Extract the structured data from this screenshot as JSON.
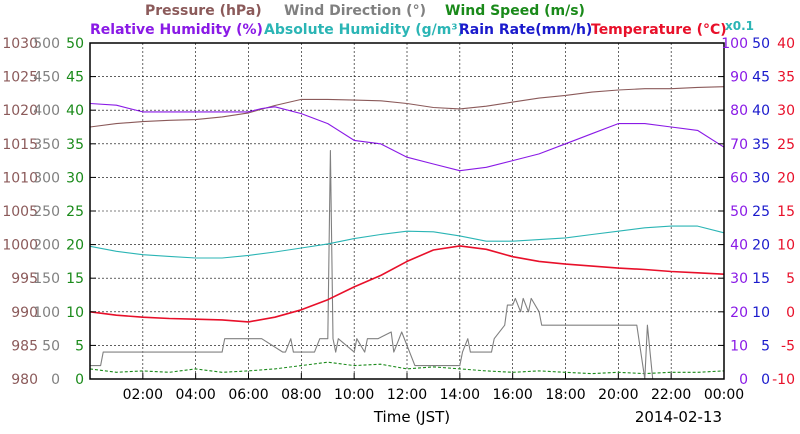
{
  "colors": {
    "pressure": "#8b5a5a",
    "wind_direction": "#808080",
    "wind_speed": "#1a8a1a",
    "humidity_rel": "#8a1ae6",
    "humidity_abs": "#2bb5b5",
    "rain": "#1a1acc",
    "temperature": "#e8102a"
  },
  "chart_data": {
    "type": "line",
    "legend": {
      "row1": [
        {
          "key": "pressure",
          "label": "Pressure (hPa)"
        },
        {
          "key": "wind_direction",
          "label": "Wind Direction (°)"
        },
        {
          "key": "wind_speed",
          "label": "Wind Speed (m/s)"
        }
      ],
      "row2": [
        {
          "key": "humidity_rel",
          "label": "Relative Humidity (%)"
        },
        {
          "key": "humidity_abs",
          "label": "Absolute Humidity (g/m³)"
        },
        {
          "key": "rain",
          "label": "Rain Rate(mm/h)"
        },
        {
          "key": "temperature",
          "label": "Temperature (°C)"
        }
      ]
    },
    "multiplier_label": "x0.1",
    "xlabel": "Time (JST)",
    "date": "2014-02-13",
    "xlim": [
      0,
      24
    ],
    "x_ticks": [
      {
        "v": 2,
        "label": "02:00"
      },
      {
        "v": 4,
        "label": "04:00"
      },
      {
        "v": 6,
        "label": "06:00"
      },
      {
        "v": 8,
        "label": "08:00"
      },
      {
        "v": 10,
        "label": "10:00"
      },
      {
        "v": 12,
        "label": "12:00"
      },
      {
        "v": 14,
        "label": "14:00"
      },
      {
        "v": 16,
        "label": "16:00"
      },
      {
        "v": 18,
        "label": "18:00"
      },
      {
        "v": 20,
        "label": "20:00"
      },
      {
        "v": 22,
        "label": "22:00"
      },
      {
        "v": 24,
        "label": "00:00"
      }
    ],
    "axes": {
      "pressure": {
        "range": [
          980,
          1030
        ],
        "ticks": [
          "980",
          "985",
          "990",
          "995",
          "1000",
          "1005",
          "1010",
          "1015",
          "1020",
          "1025",
          "1030"
        ]
      },
      "wind_direction": {
        "range": [
          0,
          500
        ],
        "ticks": [
          "0",
          "50",
          "100",
          "150",
          "200",
          "250",
          "300",
          "350",
          "400",
          "450",
          "500"
        ]
      },
      "wind_speed": {
        "range": [
          0,
          50
        ],
        "ticks": [
          "0",
          "5",
          "10",
          "15",
          "20",
          "25",
          "30",
          "35",
          "40",
          "45",
          "50"
        ]
      },
      "humidity": {
        "range": [
          0,
          100
        ],
        "ticks": [
          "0",
          "10",
          "20",
          "30",
          "40",
          "50",
          "60",
          "70",
          "80",
          "90",
          "100"
        ]
      },
      "rain": {
        "range": [
          0,
          50
        ],
        "ticks": [
          "0",
          "5",
          "10",
          "15",
          "20",
          "25",
          "30",
          "35",
          "40",
          "45",
          "50"
        ]
      },
      "temperature": {
        "range": [
          -10,
          40
        ],
        "ticks": [
          "-10",
          "-5",
          "0",
          "5",
          "10",
          "15",
          "20",
          "25",
          "30",
          "35",
          "40"
        ]
      }
    },
    "series": [
      {
        "name": "Pressure (hPa)",
        "key": "pressure",
        "axis": "pressure",
        "x": [
          0,
          1,
          2,
          3,
          4,
          5,
          6,
          7,
          8,
          9,
          10,
          11,
          12,
          13,
          14,
          15,
          16,
          17,
          18,
          19,
          20,
          21,
          22,
          23,
          24
        ],
        "y": [
          1017.5,
          1018.0,
          1018.3,
          1018.5,
          1018.6,
          1019.0,
          1019.6,
          1020.7,
          1021.6,
          1021.6,
          1021.5,
          1021.4,
          1021.0,
          1020.4,
          1020.2,
          1020.6,
          1021.2,
          1021.8,
          1022.2,
          1022.7,
          1023.0,
          1023.2,
          1023.2,
          1023.4,
          1023.5
        ]
      },
      {
        "name": "Relative Humidity (%)",
        "key": "humidity_rel",
        "axis": "humidity",
        "x": [
          0,
          1,
          2,
          3,
          4,
          5,
          6,
          6.5,
          7,
          8,
          9,
          10,
          11,
          12,
          13,
          14,
          15,
          16,
          17,
          18,
          19,
          20,
          21,
          22,
          23,
          24
        ],
        "y": [
          82,
          81.5,
          79.5,
          79.5,
          79.5,
          79.5,
          79.5,
          80.5,
          81,
          79,
          76,
          71,
          70,
          66,
          64,
          62,
          63,
          65,
          67,
          70,
          73,
          76,
          76,
          75,
          74,
          69
        ]
      },
      {
        "name": "Absolute Humidity (g/m³)",
        "key": "humidity_abs",
        "axis": "humidity",
        "x": [
          0,
          1,
          2,
          3,
          4,
          5,
          6,
          7,
          8,
          9,
          10,
          11,
          12,
          13,
          14,
          15,
          16,
          17,
          18,
          19,
          20,
          21,
          22,
          23,
          24
        ],
        "y": [
          39.5,
          38.0,
          37.0,
          36.5,
          36.0,
          36.0,
          36.8,
          37.8,
          39.0,
          40.2,
          41.8,
          43.0,
          44.0,
          43.8,
          42.6,
          41.0,
          41.0,
          41.5,
          42.0,
          43.0,
          44.0,
          45.0,
          45.5,
          45.5,
          43.5
        ]
      },
      {
        "name": "Temperature (°C)",
        "key": "temperature",
        "axis": "temperature",
        "x": [
          0,
          1,
          2,
          3,
          4,
          5,
          6,
          7,
          8,
          9,
          10,
          11,
          12,
          13,
          14,
          15,
          16,
          17,
          18,
          19,
          20,
          21,
          22,
          23,
          24
        ],
        "y": [
          0.0,
          -0.5,
          -0.8,
          -1.0,
          -1.1,
          -1.2,
          -1.5,
          -0.8,
          0.3,
          1.8,
          3.7,
          5.4,
          7.5,
          9.2,
          9.8,
          9.3,
          8.2,
          7.5,
          7.1,
          6.8,
          6.5,
          6.3,
          6.0,
          5.8,
          5.6
        ]
      },
      {
        "name": "Wind Direction (°)",
        "key": "wind_direction",
        "axis": "wind_direction",
        "x": [
          0,
          0.4,
          0.5,
          1.3,
          1.4,
          5,
          5.1,
          6.4,
          6.5,
          7.3,
          7.4,
          7.6,
          7.7,
          8.5,
          8.7,
          9.0,
          9.1,
          9.2,
          9.3,
          9.4,
          10.0,
          10.1,
          10.4,
          10.5,
          10.8,
          10.9,
          11.4,
          11.5,
          11.7,
          11.8,
          12.3,
          12.4,
          14.0,
          14.1,
          14.3,
          14.4,
          14.9,
          15.0,
          15.2,
          15.3,
          15.7,
          15.8,
          16.0,
          16.1,
          16.3,
          16.4,
          16.6,
          16.7,
          17.0,
          17.1,
          20.6,
          20.7,
          21.0,
          21.1,
          21.3,
          21.4,
          24.0
        ],
        "y": [
          20,
          20,
          40,
          40,
          40,
          40,
          60,
          60,
          60,
          40,
          40,
          60,
          40,
          40,
          60,
          60,
          340,
          60,
          40,
          60,
          40,
          60,
          40,
          60,
          60,
          60,
          70,
          40,
          60,
          70,
          20,
          20,
          20,
          40,
          60,
          40,
          40,
          40,
          40,
          60,
          80,
          110,
          110,
          120,
          100,
          120,
          100,
          120,
          100,
          80,
          80,
          80,
          0,
          80,
          0,
          0,
          0
        ]
      },
      {
        "name": "Wind Speed (m/s)",
        "key": "wind_speed",
        "axis": "wind_speed",
        "x": [
          0,
          1,
          2,
          3,
          4,
          5,
          6,
          7,
          8,
          9,
          10,
          11,
          12,
          13,
          14,
          15,
          16,
          17,
          18,
          19,
          20,
          21,
          22,
          23,
          24
        ],
        "y": [
          1.5,
          1.0,
          1.2,
          1.0,
          1.5,
          1.0,
          1.2,
          1.5,
          2.0,
          2.5,
          2.0,
          2.2,
          1.5,
          1.8,
          1.5,
          1.2,
          1.0,
          1.2,
          1.0,
          0.8,
          1.0,
          0.8,
          1.0,
          1.0,
          1.2
        ]
      },
      {
        "name": "Rain Rate(mm/h)",
        "key": "rain",
        "axis": "rain",
        "x": [
          0,
          24
        ],
        "y": [
          0,
          0
        ]
      }
    ],
    "grid": true
  }
}
